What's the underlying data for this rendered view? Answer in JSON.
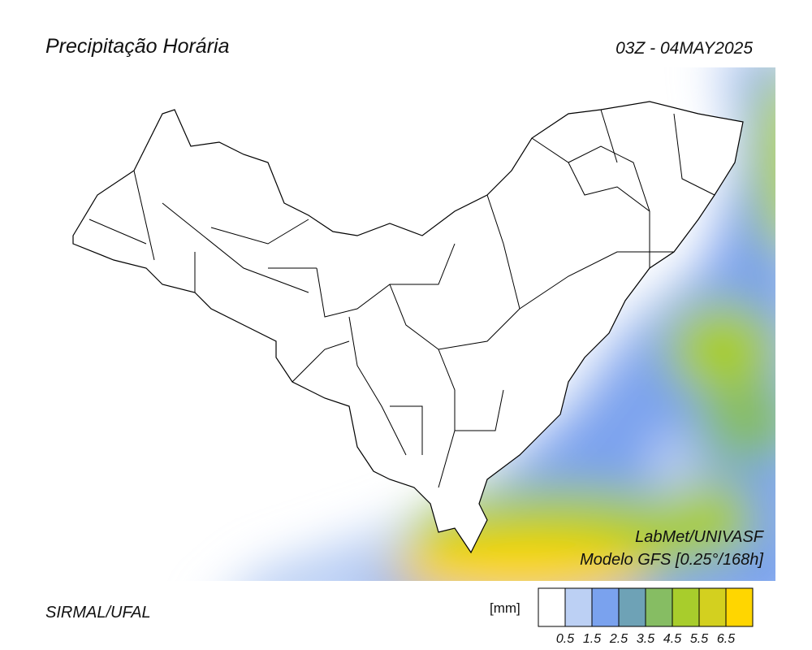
{
  "header": {
    "title": "Precipitação Horária",
    "timestamp": "03Z - 04MAY2025"
  },
  "credits": {
    "lab": "LabMet/UNIVASF",
    "model": "Modelo GFS [0.25°/168h]"
  },
  "footer": {
    "source": "SIRMAL/UFAL"
  },
  "legend": {
    "unit": "[mm]",
    "colors": [
      "#ffffff",
      "#bcd0f4",
      "#7aa2ee",
      "#6ea2b6",
      "#86bd63",
      "#a8cd2c",
      "#d3d01f",
      "#ffd600"
    ],
    "ticks": [
      "0.5",
      "1.5",
      "2.5",
      "3.5",
      "4.5",
      "5.5",
      "6.5"
    ]
  }
}
